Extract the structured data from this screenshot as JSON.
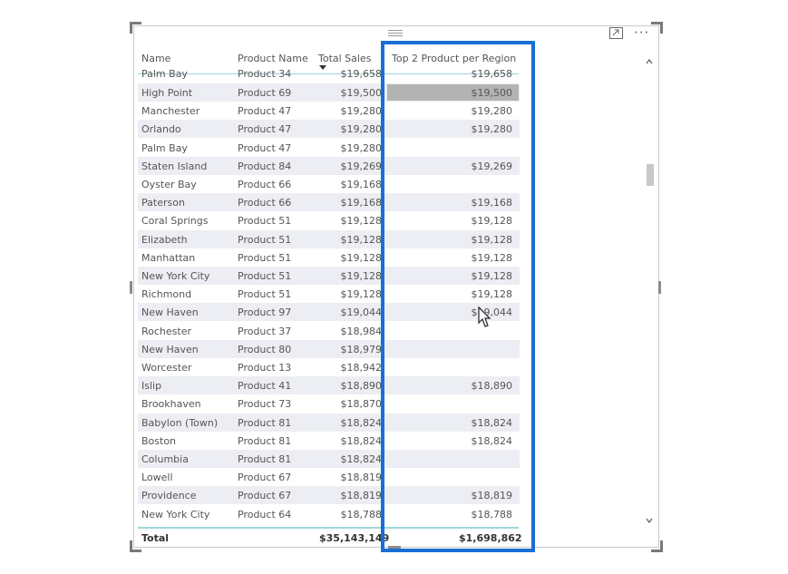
{
  "table": {
    "columns": [
      "Name",
      "Product Name",
      "Total Sales",
      "Top 2 Product per Region"
    ],
    "sorted_column": "Total Sales",
    "partial_top_row": {
      "name": "Palm Bay",
      "product": "Product 34",
      "sales": "$19,658",
      "top2": "$19,658"
    },
    "rows": [
      {
        "name": "High Point",
        "product": "Product 69",
        "sales": "$19,500",
        "top2": "$19,500",
        "selected": true
      },
      {
        "name": "Manchester",
        "product": "Product 47",
        "sales": "$19,280",
        "top2": "$19,280"
      },
      {
        "name": "Orlando",
        "product": "Product 47",
        "sales": "$19,280",
        "top2": "$19,280"
      },
      {
        "name": "Palm Bay",
        "product": "Product 47",
        "sales": "$19,280",
        "top2": ""
      },
      {
        "name": "Staten Island",
        "product": "Product 84",
        "sales": "$19,269",
        "top2": "$19,269"
      },
      {
        "name": "Oyster Bay",
        "product": "Product 66",
        "sales": "$19,168",
        "top2": ""
      },
      {
        "name": "Paterson",
        "product": "Product 66",
        "sales": "$19,168",
        "top2": "$19,168"
      },
      {
        "name": "Coral Springs",
        "product": "Product 51",
        "sales": "$19,128",
        "top2": "$19,128"
      },
      {
        "name": "Elizabeth",
        "product": "Product 51",
        "sales": "$19,128",
        "top2": "$19,128"
      },
      {
        "name": "Manhattan",
        "product": "Product 51",
        "sales": "$19,128",
        "top2": "$19,128"
      },
      {
        "name": "New York City",
        "product": "Product 51",
        "sales": "$19,128",
        "top2": "$19,128"
      },
      {
        "name": "Richmond",
        "product": "Product 51",
        "sales": "$19,128",
        "top2": "$19,128"
      },
      {
        "name": "New Haven",
        "product": "Product 97",
        "sales": "$19,044",
        "top2": "$19,044"
      },
      {
        "name": "Rochester",
        "product": "Product 37",
        "sales": "$18,984",
        "top2": ""
      },
      {
        "name": "New Haven",
        "product": "Product 80",
        "sales": "$18,979",
        "top2": ""
      },
      {
        "name": "Worcester",
        "product": "Product 13",
        "sales": "$18,942",
        "top2": ""
      },
      {
        "name": "Islip",
        "product": "Product 41",
        "sales": "$18,890",
        "top2": "$18,890"
      },
      {
        "name": "Brookhaven",
        "product": "Product 73",
        "sales": "$18,870",
        "top2": ""
      },
      {
        "name": "Babylon (Town)",
        "product": "Product 81",
        "sales": "$18,824",
        "top2": "$18,824"
      },
      {
        "name": "Boston",
        "product": "Product 81",
        "sales": "$18,824",
        "top2": "$18,824"
      },
      {
        "name": "Columbia",
        "product": "Product 81",
        "sales": "$18,824",
        "top2": ""
      },
      {
        "name": "Lowell",
        "product": "Product 67",
        "sales": "$18,819",
        "top2": ""
      },
      {
        "name": "Providence",
        "product": "Product 67",
        "sales": "$18,819",
        "top2": "$18,819"
      },
      {
        "name": "New York City",
        "product": "Product 64",
        "sales": "$18,788",
        "top2": "$18,788"
      }
    ],
    "footer": {
      "label": "Total",
      "sales": "$35,143,149",
      "top2": "$1,698,862"
    }
  },
  "toolbar": {
    "focus_icon": "focus-mode-icon",
    "more_icon": "more-options-icon",
    "more_glyph": "···"
  },
  "colors": {
    "highlight_border": "#1a6fd3",
    "accent_line": "#9fd6dc",
    "selected_cell": "#b3b3b3"
  }
}
